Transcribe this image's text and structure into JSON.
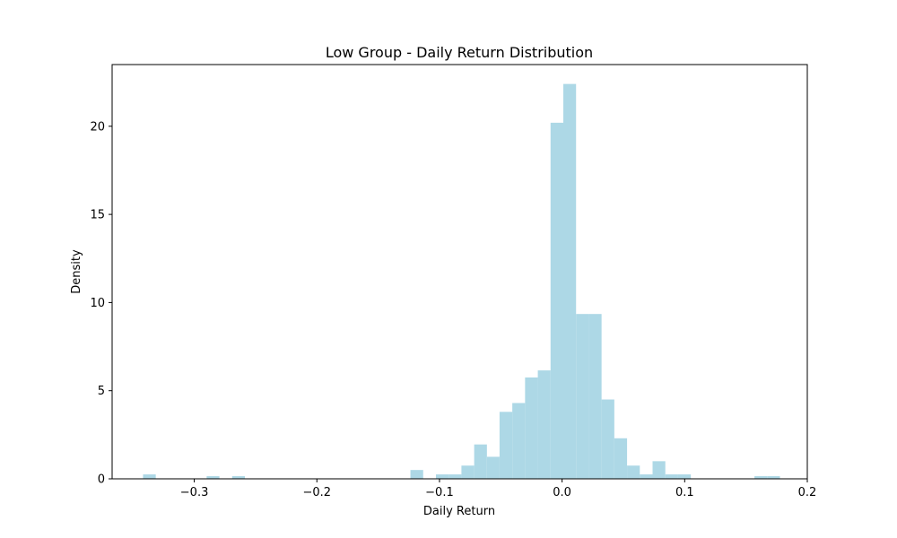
{
  "chart_data": {
    "type": "bar",
    "title": "Low Group - Daily Return Distribution",
    "xlabel": "Daily Return",
    "ylabel": "Density",
    "xlim": [
      -0.367,
      0.2
    ],
    "ylim": [
      0,
      23.5
    ],
    "xticks": [
      -0.3,
      -0.2,
      -0.1,
      0.0,
      0.1,
      0.2
    ],
    "xtick_labels": [
      "−0.3",
      "−0.2",
      "−0.1",
      "0.0",
      "0.1",
      "0.2"
    ],
    "yticks": [
      0,
      5,
      10,
      15,
      20
    ],
    "ytick_labels": [
      "0",
      "5",
      "10",
      "15",
      "20"
    ],
    "grid": false,
    "bar_color": "#add8e6",
    "bins": [
      {
        "x0": -0.3418,
        "x1": -0.3314,
        "value": 0.25
      },
      {
        "x0": -0.2899,
        "x1": -0.2795,
        "value": 0.15
      },
      {
        "x0": -0.2691,
        "x1": -0.2587,
        "value": 0.15
      },
      {
        "x0": -0.1237,
        "x1": -0.1133,
        "value": 0.5
      },
      {
        "x0": -0.1029,
        "x1": -0.0925,
        "value": 0.25
      },
      {
        "x0": -0.0925,
        "x1": -0.0821,
        "value": 0.25
      },
      {
        "x0": -0.0821,
        "x1": -0.0717,
        "value": 0.75
      },
      {
        "x0": -0.0717,
        "x1": -0.0613,
        "value": 1.95
      },
      {
        "x0": -0.0613,
        "x1": -0.051,
        "value": 1.25
      },
      {
        "x0": -0.051,
        "x1": -0.0406,
        "value": 3.8
      },
      {
        "x0": -0.0406,
        "x1": -0.0302,
        "value": 4.3
      },
      {
        "x0": -0.0302,
        "x1": -0.0198,
        "value": 5.75
      },
      {
        "x0": -0.0198,
        "x1": -0.0094,
        "value": 6.15
      },
      {
        "x0": -0.0094,
        "x1": 0.001,
        "value": 20.2
      },
      {
        "x0": 0.001,
        "x1": 0.0114,
        "value": 22.4
      },
      {
        "x0": 0.0114,
        "x1": 0.0218,
        "value": 9.35
      },
      {
        "x0": 0.0218,
        "x1": 0.0322,
        "value": 9.35
      },
      {
        "x0": 0.0322,
        "x1": 0.0426,
        "value": 4.5
      },
      {
        "x0": 0.0426,
        "x1": 0.053,
        "value": 2.3
      },
      {
        "x0": 0.053,
        "x1": 0.0634,
        "value": 0.75
      },
      {
        "x0": 0.0634,
        "x1": 0.0738,
        "value": 0.25
      },
      {
        "x0": 0.0738,
        "x1": 0.0842,
        "value": 1.0
      },
      {
        "x0": 0.0842,
        "x1": 0.0946,
        "value": 0.25
      },
      {
        "x0": 0.0946,
        "x1": 0.105,
        "value": 0.25
      },
      {
        "x0": 0.1569,
        "x1": 0.1673,
        "value": 0.15
      },
      {
        "x0": 0.1673,
        "x1": 0.1777,
        "value": 0.15
      }
    ]
  }
}
